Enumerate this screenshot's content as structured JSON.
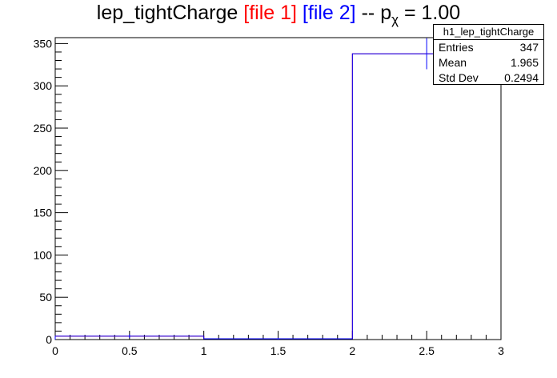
{
  "title": {
    "main": "lep_tightCharge",
    "file1": "[file 1]",
    "file2": "[file 2]",
    "sep": "--",
    "p_symbol": "p",
    "chi_symbol": "χ",
    "p_value_text": "= 1.00"
  },
  "stats": {
    "name": "h1_lep_tightCharge",
    "entries_label": "Entries",
    "entries_value": "347",
    "mean_label": "Mean",
    "mean_value": "1.965",
    "stddev_label": "Std Dev",
    "stddev_value": "0.2494"
  },
  "colors": {
    "file1": "#ff0000",
    "file2": "#0000ff",
    "axis": "#000000"
  },
  "chart_data": {
    "type": "bar",
    "title": "lep_tightCharge [file 1] [file 2] -- p_χ = 1.00",
    "xlabel": "",
    "ylabel": "",
    "xlim": [
      0,
      3
    ],
    "ylim": [
      0,
      357
    ],
    "bin_edges": [
      0,
      1,
      2,
      3
    ],
    "series": [
      {
        "name": "file 1",
        "color": "#ff0000",
        "values": [
          4,
          1,
          338
        ]
      },
      {
        "name": "file 2",
        "color": "#0000ff",
        "values": [
          4,
          1,
          338
        ]
      }
    ],
    "x_ticks": [
      0,
      0.5,
      1,
      1.5,
      2,
      2.5,
      3
    ],
    "x_tick_labels": [
      "0",
      "0.5",
      "1",
      "1.5",
      "2",
      "2.5",
      "3"
    ],
    "y_ticks": [
      0,
      50,
      100,
      150,
      200,
      250,
      300,
      350
    ],
    "y_tick_labels": [
      "0",
      "50",
      "100",
      "150",
      "200",
      "250",
      "300",
      "350"
    ],
    "grid": false,
    "legend": "top-right stats box"
  }
}
